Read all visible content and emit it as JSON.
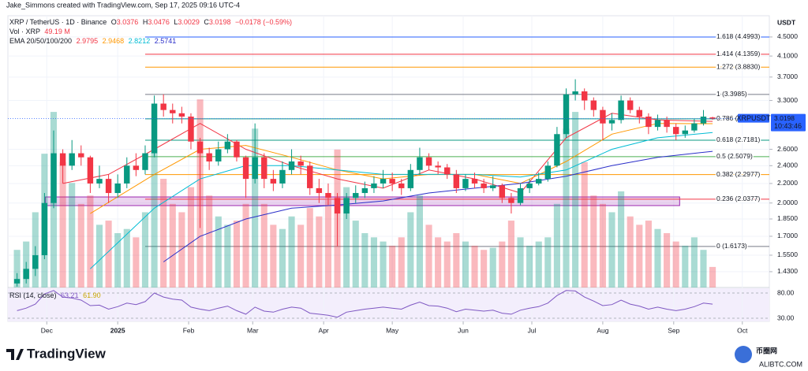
{
  "header": {
    "author": "Jake_Simmons created with TradingView.com, Sep 17, 2025 09:16 UTC-4",
    "symbol": "XRP / TetherUS · 1D · Binance",
    "ohlc_letters": [
      "O",
      "H",
      "L",
      "C"
    ],
    "change": "−0.0178 (−0.59%)",
    "volume_title": "Vol · XRP",
    "volume_label": "49.19 M",
    "ema_title": "EMA 20/50/100/200",
    "rsi_title": "RSI (14, close)",
    "rsi_values": [
      "63.21",
      "61.90"
    ]
  },
  "chart_data": {
    "type": "candlestick",
    "y_unit": "USDT",
    "log_scale": true,
    "ylim": [
      1.3237,
      4.9913
    ],
    "yticks": [
      {
        "value": 4.5,
        "label": "4.5000"
      },
      {
        "value": 4.1,
        "label": "4.1000"
      },
      {
        "value": 3.7,
        "label": "3.7000"
      },
      {
        "value": 3.3,
        "label": "3.3000"
      },
      {
        "value": 2.6,
        "label": "2.6000"
      },
      {
        "value": 2.4,
        "label": "2.4000"
      },
      {
        "value": 2.2,
        "label": "2.2000"
      },
      {
        "value": 2.0,
        "label": "2.0000"
      },
      {
        "value": 1.85,
        "label": "1.8500"
      },
      {
        "value": 1.7,
        "label": "1.7000"
      },
      {
        "value": 1.55,
        "label": "1.5500"
      },
      {
        "value": 1.43,
        "label": "1.4300"
      }
    ],
    "xlim": [
      -1,
      82.2
    ],
    "xticks": [
      {
        "value": 3.25,
        "label": "Dec"
      },
      {
        "value": 11,
        "label": "2025"
      },
      {
        "value": 18.75,
        "label": "Feb"
      },
      {
        "value": 25.75,
        "label": "Mar"
      },
      {
        "value": 33.5,
        "label": "Apr"
      },
      {
        "value": 41,
        "label": "May"
      },
      {
        "value": 48.75,
        "label": "Jun"
      },
      {
        "value": 56.25,
        "label": "Jul"
      },
      {
        "value": 64,
        "label": "Aug"
      },
      {
        "value": 71.75,
        "label": "Sep"
      },
      {
        "value": 79.25,
        "label": "Oct"
      }
    ],
    "color_up": "#089981",
    "color_down": "#f23645",
    "candles": {
      "open": [
        1.35,
        1.38,
        1.45,
        1.55,
        2.0,
        2.55,
        2.4,
        2.55,
        2.5,
        2.2,
        2.25,
        2.1,
        2.2,
        2.4,
        2.35,
        2.55,
        3.25,
        3.15,
        3.1,
        3.05,
        2.7,
        2.55,
        2.45,
        2.6,
        2.7,
        2.5,
        2.25,
        2.5,
        2.25,
        2.2,
        2.35,
        2.45,
        2.4,
        2.15,
        2.1,
        2.05,
        1.9,
        2.05,
        2.1,
        2.15,
        2.2,
        2.25,
        2.2,
        2.15,
        2.35,
        2.5,
        2.4,
        2.38,
        2.3,
        2.15,
        2.25,
        2.2,
        2.15,
        2.18,
        2.05,
        2.0,
        2.15,
        2.2,
        2.25,
        2.4,
        2.8,
        3.4,
        3.45,
        3.3,
        3.15,
        2.95,
        3.0,
        3.3,
        3.15,
        3.05,
        2.9,
        3.0,
        2.9,
        2.8,
        2.85,
        2.95,
        3.0376
      ],
      "high": [
        1.42,
        1.5,
        1.62,
        2.1,
        2.85,
        2.6,
        2.72,
        2.65,
        2.52,
        2.4,
        2.3,
        2.3,
        2.5,
        2.55,
        2.65,
        3.38,
        3.4,
        3.25,
        3.2,
        3.1,
        2.75,
        2.62,
        2.7,
        2.8,
        2.72,
        2.52,
        2.95,
        2.55,
        2.35,
        2.45,
        2.6,
        2.52,
        2.45,
        2.25,
        2.2,
        2.1,
        2.1,
        2.18,
        2.22,
        2.28,
        2.35,
        2.32,
        2.25,
        2.42,
        2.62,
        2.55,
        2.45,
        2.42,
        2.35,
        2.3,
        2.32,
        2.25,
        2.28,
        2.2,
        2.1,
        2.2,
        2.25,
        2.32,
        2.45,
        2.9,
        3.5,
        3.66,
        3.5,
        3.35,
        3.2,
        3.1,
        3.38,
        3.35,
        3.2,
        3.1,
        3.08,
        3.05,
        2.95,
        2.92,
        3.02,
        3.15,
        3.0476
      ],
      "low": [
        1.33,
        1.35,
        1.4,
        1.52,
        1.95,
        2.2,
        2.35,
        2.4,
        2.1,
        2.15,
        2.0,
        2.05,
        2.15,
        2.28,
        2.3,
        2.5,
        3.05,
        2.95,
        2.95,
        2.6,
        1.77,
        2.35,
        2.4,
        2.55,
        2.45,
        2.05,
        2.2,
        2.15,
        2.12,
        2.15,
        2.3,
        2.3,
        2.08,
        2.0,
        1.98,
        1.62,
        1.85,
        2.0,
        2.05,
        2.1,
        2.15,
        2.12,
        2.08,
        2.12,
        2.3,
        2.35,
        2.3,
        2.25,
        2.1,
        2.12,
        2.15,
        2.1,
        2.12,
        2.0,
        1.9,
        1.98,
        2.1,
        2.18,
        2.22,
        2.38,
        2.75,
        3.3,
        3.15,
        3.05,
        2.72,
        2.85,
        2.95,
        3.1,
        2.95,
        2.8,
        2.85,
        2.82,
        2.72,
        2.75,
        2.82,
        2.92,
        3.0029
      ],
      "close": [
        1.38,
        1.45,
        1.55,
        2.0,
        2.55,
        2.4,
        2.55,
        2.5,
        2.2,
        2.25,
        2.1,
        2.2,
        2.4,
        2.35,
        2.55,
        3.25,
        3.15,
        3.1,
        3.05,
        2.7,
        2.55,
        2.45,
        2.6,
        2.7,
        2.5,
        2.25,
        2.5,
        2.25,
        2.2,
        2.35,
        2.45,
        2.4,
        2.15,
        2.1,
        2.05,
        1.9,
        2.05,
        2.1,
        2.15,
        2.2,
        2.25,
        2.2,
        2.15,
        2.35,
        2.5,
        2.4,
        2.38,
        2.3,
        2.15,
        2.25,
        2.2,
        2.15,
        2.18,
        2.05,
        2.0,
        2.15,
        2.2,
        2.25,
        2.4,
        2.8,
        3.4,
        3.45,
        3.3,
        3.15,
        2.95,
        3.0,
        3.3,
        3.15,
        3.05,
        2.9,
        3.0,
        2.9,
        2.8,
        2.85,
        2.95,
        3.05,
        3.0198
      ]
    },
    "volume": {
      "ylim": [
        0,
        650
      ],
      "values": [
        90,
        110,
        180,
        320,
        420,
        300,
        250,
        200,
        220,
        150,
        160,
        130,
        140,
        120,
        180,
        350,
        260,
        200,
        180,
        240,
        450,
        220,
        170,
        150,
        160,
        200,
        380,
        200,
        150,
        140,
        170,
        150,
        190,
        170,
        210,
        330,
        240,
        160,
        130,
        120,
        110,
        100,
        120,
        180,
        220,
        150,
        120,
        110,
        130,
        110,
        100,
        90,
        95,
        110,
        160,
        120,
        100,
        110,
        120,
        200,
        380,
        420,
        300,
        220,
        200,
        180,
        230,
        170,
        150,
        160,
        140,
        130,
        110,
        100,
        120,
        90,
        49.19
      ]
    },
    "emas": [
      {
        "color": "#f23645",
        "x": [
          5,
          10,
          15,
          20,
          25,
          30,
          35,
          40,
          45,
          50,
          55,
          60,
          65,
          70,
          76
        ],
        "values": [
          2.2,
          2.3,
          2.6,
          2.95,
          2.6,
          2.4,
          2.25,
          2.15,
          2.35,
          2.25,
          2.1,
          2.75,
          3.1,
          3.0,
          2.9795
        ]
      },
      {
        "color": "#ff9800",
        "x": [
          8,
          15,
          20,
          25,
          30,
          35,
          40,
          45,
          50,
          55,
          60,
          65,
          70,
          76
        ],
        "values": [
          1.9,
          2.3,
          2.6,
          2.65,
          2.5,
          2.35,
          2.25,
          2.3,
          2.3,
          2.2,
          2.45,
          2.8,
          2.95,
          2.9468
        ]
      },
      {
        "color": "#00bcd4",
        "x": [
          8,
          15,
          20,
          25,
          30,
          35,
          40,
          45,
          50,
          55,
          60,
          65,
          70,
          76
        ],
        "values": [
          1.45,
          1.95,
          2.25,
          2.4,
          2.4,
          2.35,
          2.3,
          2.3,
          2.3,
          2.27,
          2.35,
          2.6,
          2.75,
          2.8212
        ]
      },
      {
        "color": "#2a2ec9",
        "x": [
          16,
          20,
          25,
          30,
          35,
          40,
          45,
          50,
          55,
          60,
          65,
          70,
          76
        ],
        "values": [
          1.5,
          1.7,
          1.85,
          1.95,
          1.98,
          2.02,
          2.1,
          2.15,
          2.2,
          2.28,
          2.4,
          2.5,
          2.5741
        ]
      }
    ],
    "fib": {
      "start": 14,
      "levels": [
        {
          "label": "1.618 (4.4993)",
          "value": 4.4993,
          "color": "#2962ff"
        },
        {
          "label": "1.414 (4.1359)",
          "value": 4.1359,
          "color": "#f23645"
        },
        {
          "label": "1.272 (3.8830)",
          "value": 3.883,
          "color": "#ff9800"
        },
        {
          "label": "1 (3.3985)",
          "value": 3.3985,
          "color": "#787b86"
        },
        {
          "label": "0.786 (",
          "value": 3.0173,
          "color": "#089981"
        },
        {
          "label": "0.618 (2.7181)",
          "value": 2.7181,
          "color": "#089981"
        },
        {
          "label": "0.5 (2.5079)",
          "value": 2.5079,
          "color": "#4caf50"
        },
        {
          "label": "0.382 (2.2977)",
          "value": 2.2977,
          "color": "#ff9800"
        },
        {
          "label": "0.236 (2.0377)",
          "value": 2.0377,
          "color": "#f23645"
        },
        {
          "label": "0 (1.6173)",
          "value": 1.6173,
          "color": "#787b86"
        }
      ]
    },
    "zone": {
      "x": [
        3.1,
        72.4
      ],
      "y": [
        1.975,
        2.06
      ],
      "color": "#9c27b0"
    },
    "last_price": {
      "symbol_label": "XRPUSDT",
      "countdown": "10:43:46",
      "color": "#2962ff"
    },
    "rsi": {
      "color": "#7e57c2",
      "ylim": [
        23.75,
        90.94
      ],
      "yticks": [
        {
          "value": 80,
          "label": "80.00"
        },
        {
          "value": 30,
          "label": "30.00"
        }
      ],
      "values": [
        45,
        50,
        58,
        78,
        85,
        72,
        70,
        66,
        55,
        56,
        48,
        53,
        60,
        57,
        63,
        80,
        72,
        68,
        66,
        52,
        48,
        45,
        50,
        54,
        45,
        38,
        52,
        44,
        42,
        48,
        52,
        50,
        40,
        38,
        36,
        32,
        42,
        45,
        48,
        50,
        52,
        50,
        48,
        56,
        62,
        55,
        54,
        50,
        43,
        48,
        46,
        44,
        46,
        40,
        38,
        46,
        50,
        53,
        60,
        75,
        85,
        84,
        72,
        64,
        55,
        57,
        66,
        58,
        54,
        48,
        52,
        48,
        45,
        48,
        53,
        60,
        58
      ]
    }
  },
  "footer": {
    "brand": "TradingView",
    "watermark": "币圈网",
    "watermark_sub": "ALIBTC.COM"
  }
}
